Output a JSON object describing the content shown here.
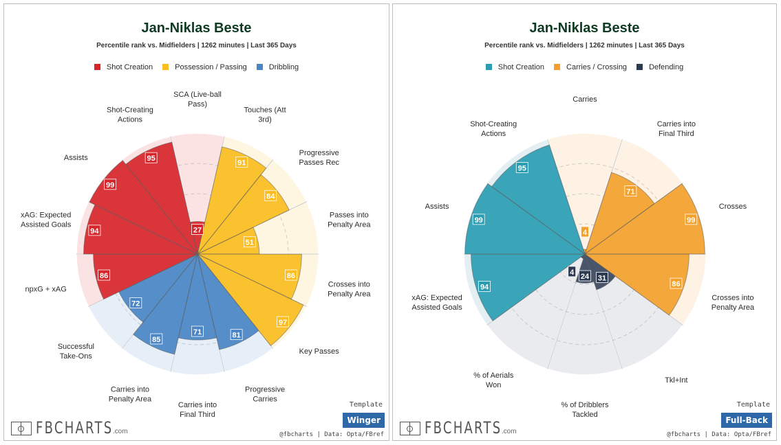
{
  "chart_data": [
    {
      "type": "pie",
      "subtype": "polar-area (pizza)",
      "title": "Jan-Niklas Beste",
      "subtitle": "Percentile rank vs. Midfielders | 1262 minutes | Last 365 Days",
      "range": [
        0,
        100
      ],
      "legend": [
        {
          "name": "Shot Creation",
          "color": "#d7262b",
          "bg": "#fbe2e3"
        },
        {
          "name": "Possession / Passing",
          "color": "#fbbd1f",
          "bg": "#fef6e1"
        },
        {
          "name": "Dribbling",
          "color": "#4a86c6",
          "bg": "#e6eef7"
        }
      ],
      "slices": [
        {
          "lines": [
            "SCA (Live-ball",
            "Pass)"
          ],
          "value": 27,
          "group": 0
        },
        {
          "lines": [
            "Touches (Att",
            "3rd)"
          ],
          "value": 91,
          "group": 1
        },
        {
          "lines": [
            "Progressive",
            "Passes Rec"
          ],
          "value": 84,
          "group": 1
        },
        {
          "lines": [
            "Passes into",
            "Penalty Area"
          ],
          "value": 51,
          "group": 1
        },
        {
          "lines": [
            "Crosses into",
            "Penalty Area"
          ],
          "value": 86,
          "group": 1
        },
        {
          "lines": [
            "Key Passes"
          ],
          "value": 97,
          "group": 1
        },
        {
          "lines": [
            "Progressive",
            "Carries"
          ],
          "value": 81,
          "group": 2
        },
        {
          "lines": [
            "Carries into",
            "Final Third"
          ],
          "value": 71,
          "group": 2
        },
        {
          "lines": [
            "Carries into",
            "Penalty Area"
          ],
          "value": 85,
          "group": 2
        },
        {
          "lines": [
            "Successful",
            "Take-Ons"
          ],
          "value": 72,
          "group": 2
        },
        {
          "lines": [
            "npxG + xAG"
          ],
          "value": 86,
          "group": 0
        },
        {
          "lines": [
            "xAG: Expected",
            "Assisted Goals"
          ],
          "value": 94,
          "group": 0
        },
        {
          "lines": [
            "Assists"
          ],
          "value": 99,
          "group": 0
        },
        {
          "lines": [
            "Shot-Creating",
            "Actions"
          ],
          "value": 95,
          "group": 0
        }
      ],
      "template_label": "Template",
      "template": "Winger",
      "credit": "@fbcharts | Data: Opta/FBref"
    },
    {
      "type": "pie",
      "subtype": "polar-area (pizza)",
      "title": "Jan-Niklas Beste",
      "subtitle": "Percentile rank vs. Midfielders | 1262 minutes | Last 365 Days",
      "range": [
        0,
        100
      ],
      "legend": [
        {
          "name": "Shot Creation",
          "color": "#2b9db3",
          "bg": "#e3eff3"
        },
        {
          "name": "Carries / Crossing",
          "color": "#f3a12b",
          "bg": "#fdf2e4"
        },
        {
          "name": "Defending",
          "color": "#2c3b52",
          "bg": "#e9ebef"
        }
      ],
      "slices": [
        {
          "lines": [
            "Carries"
          ],
          "value": 4,
          "group": 1
        },
        {
          "lines": [
            "Carries into",
            "Final Third"
          ],
          "value": 71,
          "group": 1
        },
        {
          "lines": [
            "Crosses"
          ],
          "value": 99,
          "group": 1
        },
        {
          "lines": [
            "Crosses into",
            "Penalty Area"
          ],
          "value": 86,
          "group": 1
        },
        {
          "lines": [
            "Tkl+Int"
          ],
          "value": 31,
          "group": 2
        },
        {
          "lines": [
            "% of Dribblers",
            "Tackled"
          ],
          "value": 24,
          "group": 2
        },
        {
          "lines": [
            "% of Aerials",
            "Won"
          ],
          "value": 4,
          "group": 2
        },
        {
          "lines": [
            "xAG: Expected",
            "Assisted Goals"
          ],
          "value": 94,
          "group": 0
        },
        {
          "lines": [
            "Assists"
          ],
          "value": 99,
          "group": 0
        },
        {
          "lines": [
            "Shot-Creating",
            "Actions"
          ],
          "value": 95,
          "group": 0
        }
      ],
      "template_label": "Template",
      "template": "Full-Back",
      "credit": "@fbcharts | Data: Opta/FBref"
    }
  ],
  "logo": {
    "text": "FBCHARTS",
    "suffix": ".com"
  }
}
